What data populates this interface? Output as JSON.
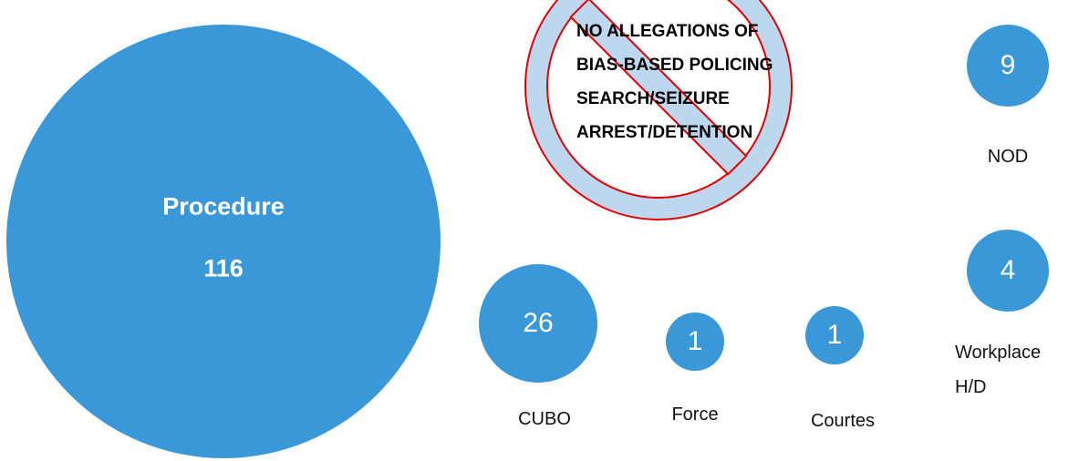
{
  "chart_data": {
    "type": "bubble",
    "categories": [
      "Procedure",
      "CUBO",
      "Force",
      "Courtes",
      "NOD",
      "Workplace H/D"
    ],
    "values": [
      116,
      26,
      1,
      1,
      9,
      4
    ],
    "color": "#3a98d8",
    "annotation": [
      "NO ALLEGATIONS OF",
      "BIAS-BASED POLICING",
      "SEARCH/SEIZURE",
      "ARREST/DETENTION"
    ]
  }
}
